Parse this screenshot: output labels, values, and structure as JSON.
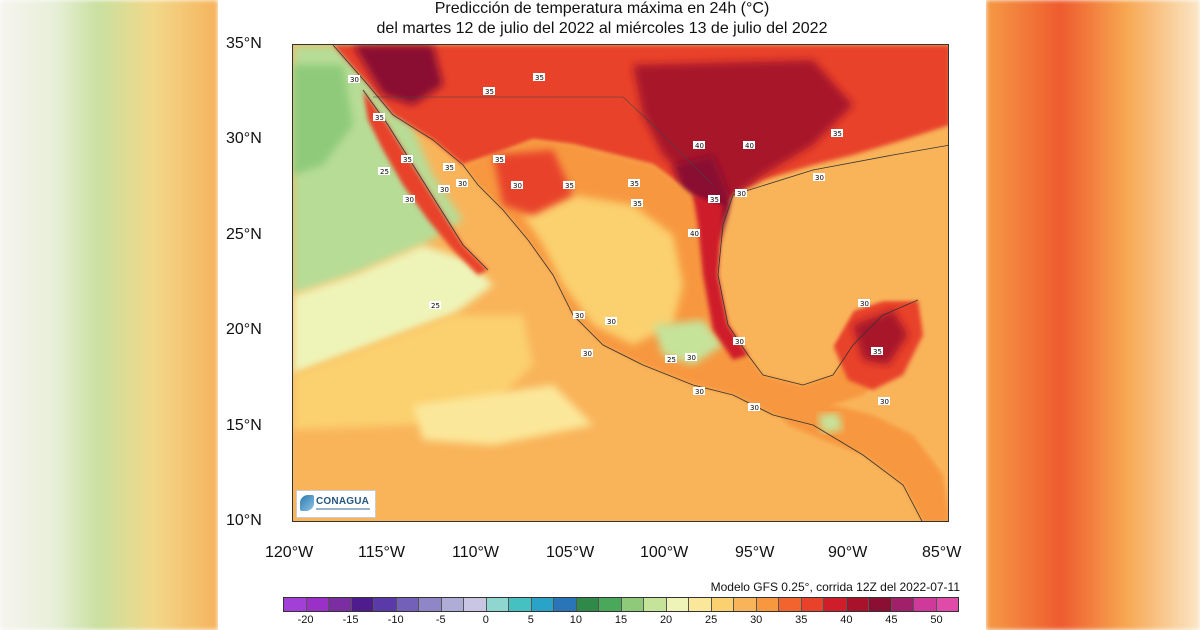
{
  "header": {
    "title_line1": "Predicción de temperatura máxima en 24h (°C)",
    "title_line2": "del martes 12 de julio del 2022 al miércoles  13 de julio del 2022"
  },
  "axes": {
    "lat_ticks": [
      "35°N",
      "30°N",
      "25°N",
      "20°N",
      "15°N",
      "10°N"
    ],
    "lon_ticks": [
      "120°W",
      "115°W",
      "110°W",
      "105°W",
      "100°W",
      "95°W",
      "90°W",
      "85°W"
    ]
  },
  "model_credit": "Modelo GFS 0.25°, corrida 12Z del 2022-07-11",
  "logo_text": "CONAGUA",
  "contour_labels": [
    "25",
    "30",
    "35",
    "40"
  ],
  "colorbar": {
    "labels": [
      "-20",
      "-15",
      "-10",
      "-5",
      "0",
      "5",
      "10",
      "15",
      "20",
      "25",
      "30",
      "35",
      "40",
      "45",
      "50"
    ],
    "colors": [
      "#a23fd6",
      "#9b30c9",
      "#7a2ea1",
      "#4e1c8c",
      "#5a3aa8",
      "#7360b8",
      "#8f86c8",
      "#b0acd8",
      "#c9c6e4",
      "#8fd6d0",
      "#45c1c2",
      "#2aa3c9",
      "#2a74b8",
      "#2f8a4a",
      "#4aa85a",
      "#8fca7a",
      "#c6e39a",
      "#eef4b8",
      "#fbe79a",
      "#fbd06e",
      "#f9b45a",
      "#f7983f",
      "#f2632e",
      "#e8432a",
      "#cf1e2a",
      "#a8122a",
      "#8a0f33",
      "#a0206a",
      "#cf3a9a",
      "#e04aa8"
    ]
  },
  "map": {
    "colors": {
      "ocean_cool": "#b7dc96",
      "ocean_green": "#8fca7a",
      "ocean_pale": "#eef4b8",
      "ocean_warm": "#f9b45a",
      "land_hot": "#e8432a",
      "land_very_hot": "#a8122a",
      "land_warm": "#f7983f",
      "land_mild": "#fbd06e"
    }
  }
}
